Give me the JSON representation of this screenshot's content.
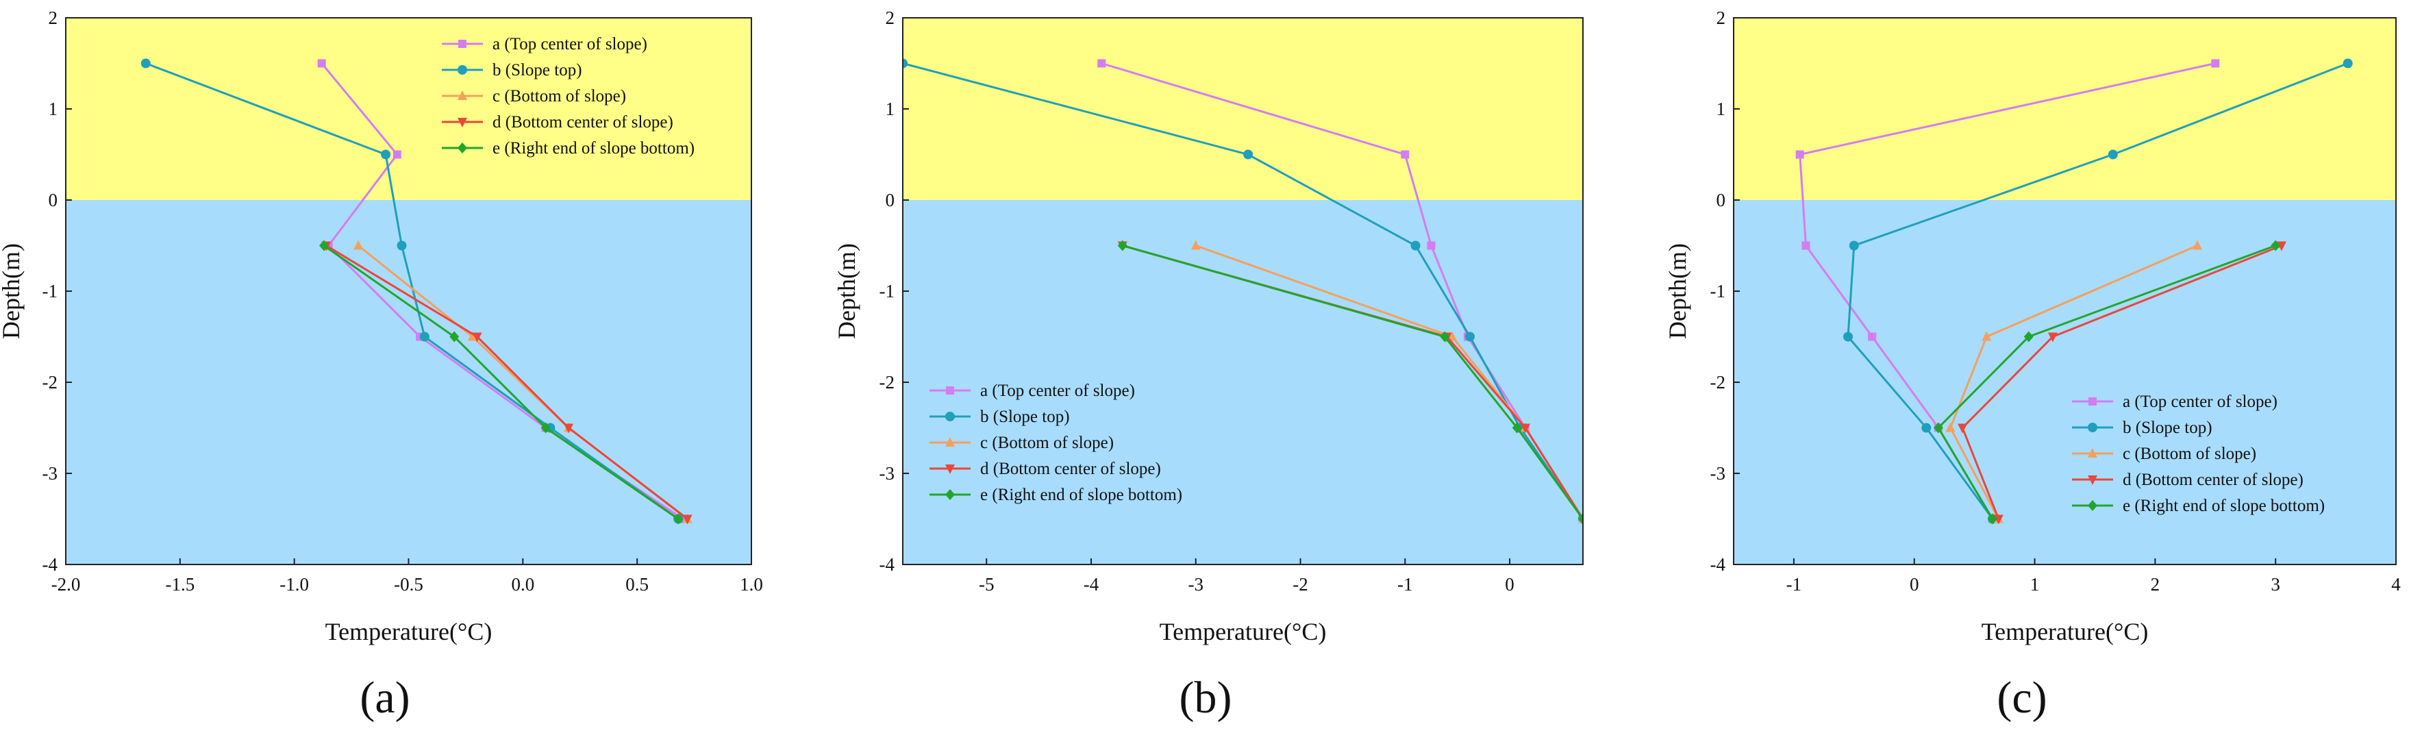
{
  "colors": {
    "frozen_zone": "#FFFF88",
    "thawed_zone": "#A8DCFC",
    "a": "#D57CF3",
    "b": "#1F9FBB",
    "c": "#F5A05B",
    "d": "#E8483C",
    "e": "#21A62C"
  },
  "chart_data": [
    {
      "type": "line",
      "panel": "(a)",
      "xlabel": "Temperature(°C)",
      "ylabel": "Depth(m)",
      "xlim": [
        -2.0,
        1.0
      ],
      "ylim": [
        -4,
        2
      ],
      "xticks": [
        -2.0,
        -1.5,
        -1.0,
        -0.5,
        0.0,
        0.5,
        1.0
      ],
      "xtick_labels": [
        "-2.0",
        "-1.5",
        "-1.0",
        "-0.5",
        "0.0",
        "0.5",
        "1.0"
      ],
      "yticks": [
        -4,
        -3,
        -2,
        -1,
        0,
        1,
        2
      ],
      "ytick_labels": [
        "-4",
        "-3",
        "-2",
        "-1",
        "0",
        "1",
        "2"
      ],
      "legend_position": "top-right",
      "series": [
        {
          "key": "a",
          "name": "a (Top center of slope)",
          "marker": "square",
          "x": [
            -0.88,
            -0.55,
            -0.85,
            -0.45,
            0.1,
            0.7
          ],
          "y": [
            1.5,
            0.5,
            -0.5,
            -1.5,
            -2.5,
            -3.5
          ]
        },
        {
          "key": "b",
          "name": "b (Slope top)",
          "marker": "circle",
          "x": [
            -1.65,
            -0.6,
            -0.53,
            -0.43,
            0.12,
            0.68
          ],
          "y": [
            1.5,
            0.5,
            -0.5,
            -1.5,
            -2.5,
            -3.5
          ]
        },
        {
          "key": "c",
          "name": "c (Bottom of slope)",
          "marker": "triangle-up",
          "x": [
            -0.72,
            -0.22,
            0.2,
            0.72
          ],
          "y": [
            -0.5,
            -1.5,
            -2.5,
            -3.5
          ]
        },
        {
          "key": "d",
          "name": "d (Bottom center of slope)",
          "marker": "triangle-down",
          "x": [
            -0.86,
            -0.2,
            0.2,
            0.72
          ],
          "y": [
            -0.5,
            -1.5,
            -2.5,
            -3.5
          ]
        },
        {
          "key": "e",
          "name": "e (Right end of slope bottom)",
          "marker": "diamond",
          "x": [
            -0.87,
            -0.3,
            0.1,
            0.68
          ],
          "y": [
            -0.5,
            -1.5,
            -2.5,
            -3.5
          ]
        }
      ]
    },
    {
      "type": "line",
      "panel": "(b)",
      "xlabel": "Temperature(°C)",
      "ylabel": "Depth(m)",
      "xlim": [
        -5.8,
        0.7
      ],
      "ylim": [
        -4,
        2
      ],
      "xticks": [
        -5,
        -4,
        -3,
        -2,
        -1,
        0
      ],
      "xtick_labels": [
        "-5",
        "-4",
        "-3",
        "-2",
        "-1",
        "0"
      ],
      "yticks": [
        -4,
        -3,
        -2,
        -1,
        0,
        1,
        2
      ],
      "ytick_labels": [
        "-4",
        "-3",
        "-2",
        "-1",
        "0",
        "1",
        "2"
      ],
      "legend_position": "bottom-left",
      "series": [
        {
          "key": "a",
          "name": "a (Top center of slope)",
          "marker": "square",
          "x": [
            -3.9,
            -1.0,
            -0.75,
            -0.4,
            0.15,
            0.7
          ],
          "y": [
            1.5,
            0.5,
            -0.5,
            -1.5,
            -2.5,
            -3.5
          ]
        },
        {
          "key": "b",
          "name": "b (Slope top)",
          "marker": "circle",
          "x": [
            -5.8,
            -2.5,
            -0.9,
            -0.38,
            0.1,
            0.7
          ],
          "y": [
            1.5,
            0.5,
            -0.5,
            -1.5,
            -2.5,
            -3.5
          ]
        },
        {
          "key": "c",
          "name": "c (Bottom of slope)",
          "marker": "triangle-up",
          "x": [
            -3.0,
            -0.55,
            0.15,
            0.7
          ],
          "y": [
            -0.5,
            -1.5,
            -2.5,
            -3.5
          ]
        },
        {
          "key": "d",
          "name": "d (Bottom center of slope)",
          "marker": "triangle-down",
          "x": [
            -3.7,
            -0.6,
            0.15,
            0.7
          ],
          "y": [
            -0.5,
            -1.5,
            -2.5,
            -3.5
          ]
        },
        {
          "key": "e",
          "name": "e (Right end of slope bottom)",
          "marker": "diamond",
          "x": [
            -3.7,
            -0.62,
            0.07,
            0.7
          ],
          "y": [
            -0.5,
            -1.5,
            -2.5,
            -3.5
          ]
        }
      ]
    },
    {
      "type": "line",
      "panel": "(c)",
      "xlabel": "Temperature(°C)",
      "ylabel": "Depth(m)",
      "xlim": [
        -1.5,
        4.0
      ],
      "ylim": [
        -4,
        2
      ],
      "xticks": [
        -1,
        0,
        1,
        2,
        3,
        4
      ],
      "xtick_labels": [
        "-1",
        "0",
        "1",
        "2",
        "3",
        "4"
      ],
      "yticks": [
        -4,
        -3,
        -2,
        -1,
        0,
        1,
        2
      ],
      "ytick_labels": [
        "-4",
        "-3",
        "-2",
        "-1",
        "0",
        "1",
        "2"
      ],
      "legend_position": "bottom-right",
      "series": [
        {
          "key": "a",
          "name": "a (Top center of slope)",
          "marker": "square",
          "x": [
            2.5,
            -0.95,
            -0.9,
            -0.35,
            0.2,
            0.65
          ],
          "y": [
            1.5,
            0.5,
            -0.5,
            -1.5,
            -2.5,
            -3.5
          ]
        },
        {
          "key": "b",
          "name": "b (Slope top)",
          "marker": "circle",
          "x": [
            3.6,
            1.65,
            -0.5,
            -0.55,
            0.1,
            0.65
          ],
          "y": [
            1.5,
            0.5,
            -0.5,
            -1.5,
            -2.5,
            -3.5
          ]
        },
        {
          "key": "c",
          "name": "c (Bottom of slope)",
          "marker": "triangle-up",
          "x": [
            2.35,
            0.6,
            0.3,
            0.7
          ],
          "y": [
            -0.5,
            -1.5,
            -2.5,
            -3.5
          ]
        },
        {
          "key": "d",
          "name": "d (Bottom center of slope)",
          "marker": "triangle-down",
          "x": [
            3.05,
            1.15,
            0.4,
            0.7
          ],
          "y": [
            -0.5,
            -1.5,
            -2.5,
            -3.5
          ]
        },
        {
          "key": "e",
          "name": "e (Right end of slope bottom)",
          "marker": "diamond",
          "x": [
            3.0,
            0.95,
            0.2,
            0.65
          ],
          "y": [
            -0.5,
            -1.5,
            -2.5,
            -3.5
          ]
        }
      ]
    }
  ]
}
